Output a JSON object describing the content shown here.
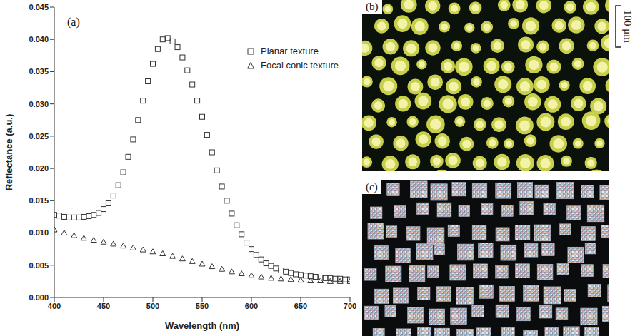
{
  "chart_data": {
    "type": "scatter",
    "xlabel": "Wavelength (nm)",
    "ylabel": "Reflectance (a.u.)",
    "xlim": [
      400,
      700
    ],
    "xticks": [
      400,
      450,
      500,
      550,
      600,
      650,
      700
    ],
    "ylim": [
      0,
      0.045
    ],
    "yticks": [
      {
        "value": 0,
        "label": "0.000"
      },
      {
        "value": 0.005,
        "label": "0.005"
      },
      {
        "value": 0.01,
        "label": "0.010"
      },
      {
        "value": 0.015,
        "label": "0.015"
      },
      {
        "value": 0.02,
        "label": "0.020"
      },
      {
        "value": 0.025,
        "label": "0.025"
      },
      {
        "value": 0.03,
        "label": "0.030"
      },
      {
        "value": 0.035,
        "label": "0.035"
      },
      {
        "value": 0.04,
        "label": "0.040"
      },
      {
        "value": 0.045,
        "label": "0.045"
      }
    ],
    "grid": false,
    "legend": "upper right",
    "series": [
      {
        "name": "Planar texture",
        "color": "#333333",
        "marker": "square",
        "x": [
          400,
          405,
          410,
          415,
          420,
          425,
          430,
          435,
          440,
          445,
          450,
          455,
          460,
          465,
          470,
          475,
          480,
          485,
          490,
          495,
          500,
          505,
          510,
          515,
          520,
          525,
          530,
          535,
          540,
          545,
          550,
          555,
          560,
          565,
          570,
          575,
          580,
          585,
          590,
          595,
          600,
          605,
          610,
          615,
          620,
          625,
          630,
          635,
          640,
          645,
          650,
          655,
          660,
          665,
          670,
          675,
          680,
          685,
          690,
          695,
          700
        ],
        "values": [
          0.0128,
          0.0127,
          0.0125,
          0.0124,
          0.0124,
          0.0124,
          0.0125,
          0.0126,
          0.0128,
          0.0131,
          0.0137,
          0.0146,
          0.0158,
          0.0174,
          0.0194,
          0.0218,
          0.0245,
          0.0275,
          0.0305,
          0.0335,
          0.0362,
          0.0385,
          0.04,
          0.0402,
          0.0397,
          0.0388,
          0.0372,
          0.0352,
          0.033,
          0.0305,
          0.028,
          0.0252,
          0.0225,
          0.0197,
          0.0172,
          0.015,
          0.013,
          0.0112,
          0.0098,
          0.0085,
          0.0075,
          0.0066,
          0.0059,
          0.0053,
          0.0049,
          0.0045,
          0.0042,
          0.004,
          0.0038,
          0.0036,
          0.0035,
          0.0034,
          0.0033,
          0.0032,
          0.0031,
          0.003,
          0.003,
          0.0029,
          0.0029,
          0.0028,
          0.0028
        ]
      },
      {
        "name": "Focal conic texture",
        "color": "#333333",
        "marker": "triangle",
        "x": [
          400,
          410,
          420,
          430,
          440,
          450,
          460,
          470,
          480,
          490,
          500,
          510,
          520,
          530,
          540,
          550,
          560,
          570,
          580,
          590,
          600,
          610,
          620,
          630,
          640,
          650,
          660,
          670,
          680,
          690,
          700
        ],
        "values": [
          0.0105,
          0.01,
          0.0096,
          0.0092,
          0.0089,
          0.0086,
          0.0083,
          0.008,
          0.0077,
          0.0074,
          0.0071,
          0.0068,
          0.0064,
          0.006,
          0.0056,
          0.0052,
          0.0048,
          0.0044,
          0.004,
          0.0037,
          0.0034,
          0.0032,
          0.003,
          0.0029,
          0.0028,
          0.0027,
          0.0026,
          0.0026,
          0.0025,
          0.0025,
          0.0025
        ]
      }
    ]
  },
  "panel_labels": [
    "(a)",
    "(b)",
    "(c)"
  ],
  "scale_bar": "100 μm"
}
